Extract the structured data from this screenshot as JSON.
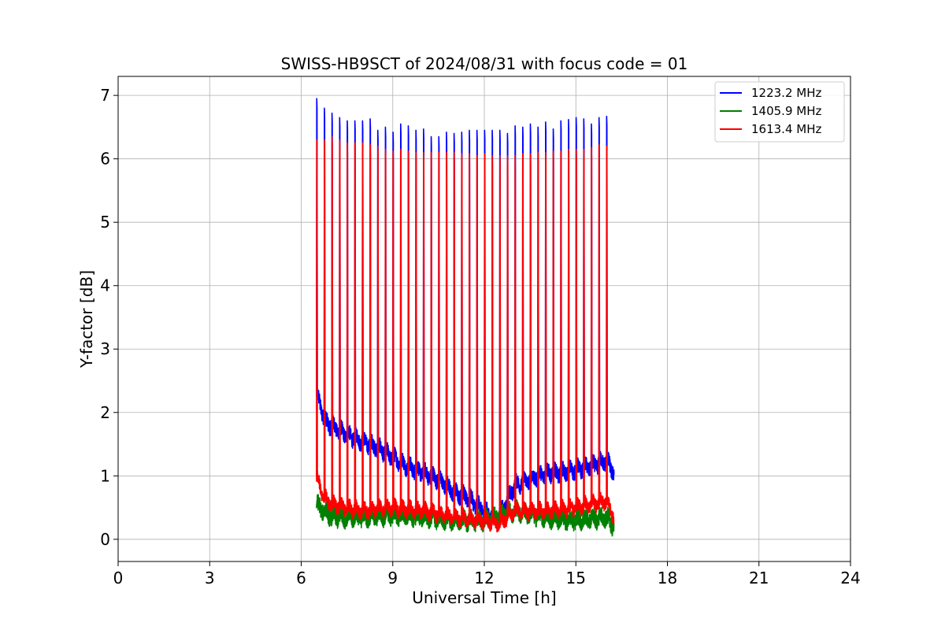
{
  "chart_data": {
    "type": "line",
    "title": "SWISS-HB9SCT of 2024/08/31 with focus code = 01",
    "xlabel": "Universal Time [h]",
    "ylabel": "Y-factor [dB]",
    "xlim": [
      0,
      24
    ],
    "ylim": [
      -0.35,
      7.3
    ],
    "xticks": [
      0,
      3,
      6,
      9,
      12,
      15,
      18,
      21,
      24
    ],
    "yticks": [
      0,
      1,
      2,
      3,
      4,
      5,
      6,
      7
    ],
    "grid": true,
    "legend_position": "top-right",
    "data_start_h": 6.5,
    "data_end_h": 16.25,
    "spike_width_h": 0.03,
    "series": [
      {
        "name": "1223.2 MHz",
        "color": "#0000ff",
        "noise_amplitude": 0.12,
        "baseline": [
          [
            6.5,
            2.3
          ],
          [
            6.8,
            1.85
          ],
          [
            7.5,
            1.65
          ],
          [
            8.0,
            1.55
          ],
          [
            8.5,
            1.45
          ],
          [
            9.0,
            1.3
          ],
          [
            9.5,
            1.15
          ],
          [
            10.0,
            1.05
          ],
          [
            10.5,
            0.95
          ],
          [
            11.0,
            0.75
          ],
          [
            11.5,
            0.65
          ],
          [
            12.0,
            0.45
          ],
          [
            12.4,
            0.3
          ],
          [
            12.7,
            0.55
          ],
          [
            13.0,
            0.85
          ],
          [
            13.5,
            0.95
          ],
          [
            14.0,
            1.05
          ],
          [
            14.5,
            1.05
          ],
          [
            15.0,
            1.1
          ],
          [
            15.5,
            1.15
          ],
          [
            16.0,
            1.25
          ],
          [
            16.25,
            1.05
          ]
        ],
        "spikes": [
          [
            6.5,
            6.95
          ],
          [
            6.75,
            6.8
          ],
          [
            7.0,
            6.72
          ],
          [
            7.25,
            6.65
          ],
          [
            7.5,
            6.6
          ],
          [
            7.75,
            6.6
          ],
          [
            8.0,
            6.6
          ],
          [
            8.25,
            6.63
          ],
          [
            8.5,
            6.45
          ],
          [
            8.75,
            6.5
          ],
          [
            9.0,
            6.42
          ],
          [
            9.25,
            6.55
          ],
          [
            9.5,
            6.52
          ],
          [
            9.75,
            6.45
          ],
          [
            10.0,
            6.47
          ],
          [
            10.25,
            6.35
          ],
          [
            10.5,
            6.35
          ],
          [
            10.75,
            6.42
          ],
          [
            11.0,
            6.4
          ],
          [
            11.25,
            6.42
          ],
          [
            11.5,
            6.45
          ],
          [
            11.75,
            6.45
          ],
          [
            12.0,
            6.45
          ],
          [
            12.25,
            6.45
          ],
          [
            12.5,
            6.45
          ],
          [
            12.75,
            6.4
          ],
          [
            13.0,
            6.52
          ],
          [
            13.25,
            6.5
          ],
          [
            13.5,
            6.55
          ],
          [
            13.75,
            6.5
          ],
          [
            14.0,
            6.58
          ],
          [
            14.25,
            6.47
          ],
          [
            14.5,
            6.6
          ],
          [
            14.75,
            6.62
          ],
          [
            15.0,
            6.65
          ],
          [
            15.25,
            6.63
          ],
          [
            15.5,
            6.55
          ],
          [
            15.75,
            6.65
          ],
          [
            16.0,
            6.67
          ]
        ]
      },
      {
        "name": "1405.9 MHz",
        "color": "#008000",
        "noise_amplitude": 0.13,
        "baseline": [
          [
            6.5,
            0.55
          ],
          [
            7.0,
            0.35
          ],
          [
            8.0,
            0.35
          ],
          [
            9.0,
            0.38
          ],
          [
            10.0,
            0.35
          ],
          [
            11.0,
            0.3
          ],
          [
            12.0,
            0.3
          ],
          [
            13.0,
            0.45
          ],
          [
            14.0,
            0.35
          ],
          [
            15.0,
            0.3
          ],
          [
            16.0,
            0.35
          ],
          [
            16.25,
            0.2
          ]
        ],
        "spikes": []
      },
      {
        "name": "1613.4 MHz",
        "color": "#ff0000",
        "noise_amplitude": 0.1,
        "baseline": [
          [
            6.5,
            1.0
          ],
          [
            6.7,
            0.7
          ],
          [
            7.0,
            0.55
          ],
          [
            8.0,
            0.45
          ],
          [
            9.0,
            0.5
          ],
          [
            10.0,
            0.45
          ],
          [
            11.0,
            0.35
          ],
          [
            12.0,
            0.3
          ],
          [
            12.5,
            0.25
          ],
          [
            13.0,
            0.45
          ],
          [
            14.0,
            0.45
          ],
          [
            15.0,
            0.5
          ],
          [
            15.5,
            0.55
          ],
          [
            16.0,
            0.6
          ],
          [
            16.25,
            0.35
          ]
        ],
        "spikes": [
          [
            6.5,
            6.3
          ],
          [
            6.75,
            6.3
          ],
          [
            7.0,
            6.35
          ],
          [
            7.25,
            6.3
          ],
          [
            7.5,
            6.25
          ],
          [
            7.75,
            6.25
          ],
          [
            8.0,
            6.25
          ],
          [
            8.25,
            6.23
          ],
          [
            8.5,
            6.2
          ],
          [
            8.75,
            6.15
          ],
          [
            9.0,
            6.12
          ],
          [
            9.25,
            6.15
          ],
          [
            9.5,
            6.12
          ],
          [
            9.75,
            6.1
          ],
          [
            10.0,
            6.1
          ],
          [
            10.25,
            6.1
          ],
          [
            10.5,
            6.1
          ],
          [
            10.75,
            6.1
          ],
          [
            11.0,
            6.1
          ],
          [
            11.25,
            6.08
          ],
          [
            11.5,
            6.08
          ],
          [
            11.75,
            6.05
          ],
          [
            12.0,
            6.08
          ],
          [
            12.25,
            6.05
          ],
          [
            12.5,
            6.05
          ],
          [
            12.75,
            6.05
          ],
          [
            13.0,
            6.05
          ],
          [
            13.25,
            6.08
          ],
          [
            13.5,
            6.08
          ],
          [
            13.75,
            6.1
          ],
          [
            14.0,
            6.1
          ],
          [
            14.25,
            6.12
          ],
          [
            14.5,
            6.12
          ],
          [
            14.75,
            6.15
          ],
          [
            15.0,
            6.15
          ],
          [
            15.25,
            6.15
          ],
          [
            15.5,
            6.18
          ],
          [
            15.75,
            6.22
          ],
          [
            16.0,
            6.2
          ]
        ]
      }
    ]
  }
}
